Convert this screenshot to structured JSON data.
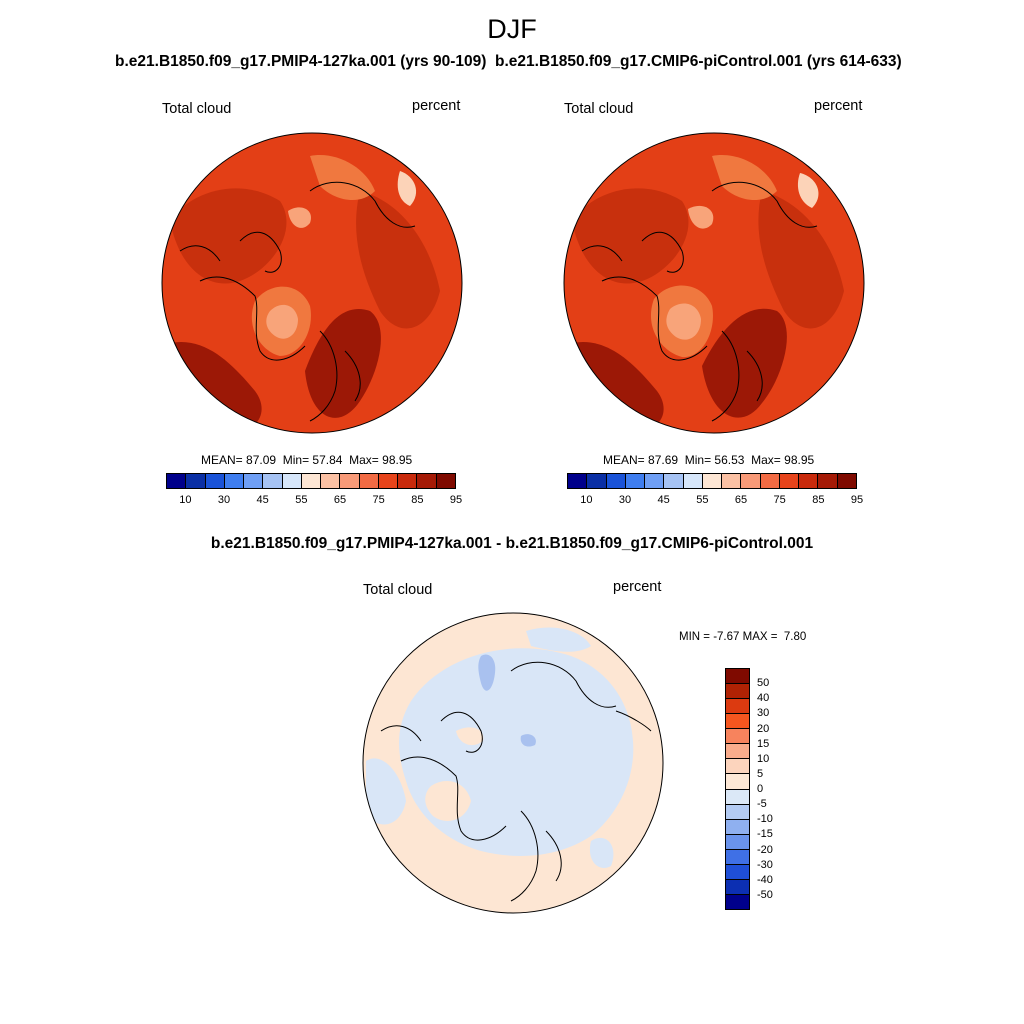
{
  "page": {
    "title": "DJF",
    "diff_title": "b.e21.B1850.f09_g17.PMIP4-127ka.001 - b.e21.B1850.f09_g17.CMIP6-piControl.001"
  },
  "panels": [
    {
      "experiment": "b.e21.B1850.f09_g17.PMIP4-127ka.001 (yrs 90-109)",
      "variable": "Total cloud",
      "units": "percent",
      "mean_label": "MEAN=",
      "mean": "87.09",
      "min_label": "Min=",
      "min": "57.84",
      "max_label": "Max=",
      "max": "98.95"
    },
    {
      "experiment": "b.e21.B1850.f09_g17.CMIP6-piControl.001 (yrs 614-633)",
      "variable": "Total cloud",
      "units": "percent",
      "mean_label": "MEAN=",
      "mean": "87.69",
      "min_label": "Min=",
      "min": "56.53",
      "max_label": "Max=",
      "max": "98.95"
    }
  ],
  "diff": {
    "variable": "Total cloud",
    "units": "percent",
    "min_label": "MIN =",
    "min": "-7.67",
    "max_label": "MAX =",
    "max": "7.80"
  },
  "abs_colorbar": {
    "colors": [
      "#00008b",
      "#0a2fa5",
      "#1a53d8",
      "#3f7ef0",
      "#6f9ff5",
      "#a6c3f4",
      "#d6e6fa",
      "#fde6d4",
      "#fbc1a4",
      "#f89a78",
      "#f26b44",
      "#e7441b",
      "#c92a0c",
      "#a51a06",
      "#7f0a00"
    ],
    "ticks": [
      "10",
      "30",
      "45",
      "55",
      "65",
      "75",
      "85",
      "95"
    ]
  },
  "diff_colorbar": {
    "colors": [
      "#7f0a00",
      "#b02204",
      "#dc3a10",
      "#f5561f",
      "#f7835d",
      "#f9ac8c",
      "#fcd4bd",
      "#fde8d6",
      "#dbe8f7",
      "#b3cbf3",
      "#8fb0f0",
      "#6a93ec",
      "#3f70e6",
      "#1f4fd7",
      "#0c2fb2",
      "#00008b"
    ],
    "ticks": [
      "50",
      "40",
      "30",
      "20",
      "15",
      "10",
      "5",
      "0",
      "-5",
      "-10",
      "-15",
      "-20",
      "-30",
      "-40",
      "-50"
    ]
  },
  "map_colors": {
    "ocean_base": "#e33f16",
    "deep_high": "#9c1806",
    "mid": "#c8300d",
    "light": "#f0783f",
    "lighter": "#f8a47a",
    "pale": "#fcd3b8",
    "blue_pale": "#c9dcf4",
    "diff_base": "#fde6d3",
    "diff_neg": "#d9e6f7",
    "diff_neg2": "#a9c1ef"
  }
}
